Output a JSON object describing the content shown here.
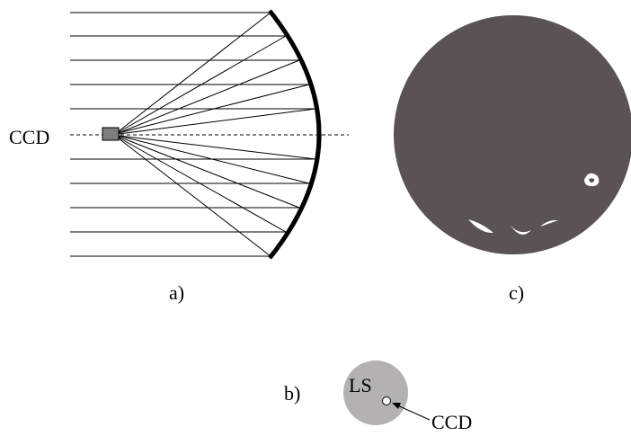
{
  "labels": {
    "ccd_left": "CCD",
    "panel_a": "a)",
    "panel_b": "b)",
    "panel_c": "c)",
    "ls": "LS",
    "ccd_arrow": "CCD"
  },
  "colors": {
    "ink": "#000000",
    "ccd_box": "#7d7d7d",
    "image_disk": "#5a5253",
    "highlight": "#ffffff",
    "ls_disk": "#b3b1b1"
  }
}
